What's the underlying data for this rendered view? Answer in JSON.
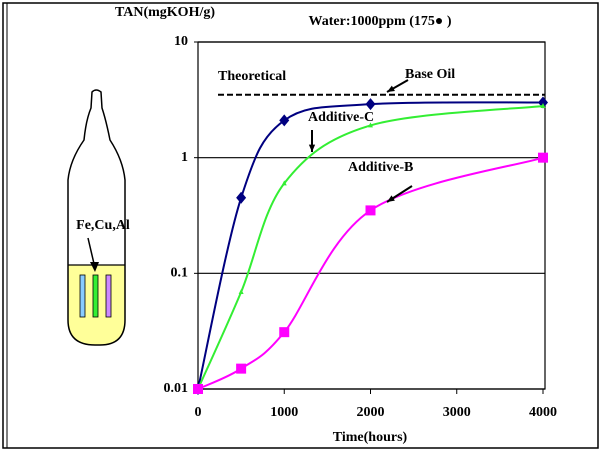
{
  "chart_data": {
    "type": "line",
    "y_label": "TAN(mgKOH/g)",
    "subtitle": "Water:1000ppm  (175● )",
    "x_label": "Time(hours)",
    "log_y": true,
    "grid": true,
    "xlim": [
      0,
      4000
    ],
    "xticks": [
      0,
      1000,
      2000,
      3000,
      4000
    ],
    "ylim": [
      0.01,
      10
    ],
    "yticks": [
      0.01,
      0.1,
      1,
      10
    ],
    "reference_line": {
      "label": "Theoretical",
      "value": 3.5
    },
    "series": [
      {
        "name": "Base Oil",
        "color": "#000080",
        "marker": "diamond",
        "x": [
          0,
          500,
          1000,
          2000,
          4000
        ],
        "values": [
          0.01,
          0.45,
          2.1,
          2.9,
          3.0
        ]
      },
      {
        "name": "Additive-C",
        "color": "#33ee33",
        "marker": "triangle",
        "x": [
          0,
          500,
          1000,
          2000,
          4000
        ],
        "values": [
          0.01,
          0.069,
          0.6,
          1.9,
          2.8
        ]
      },
      {
        "name": "Additive-B",
        "color": "#ff00ff",
        "marker": "square",
        "x": [
          0,
          500,
          1000,
          2000,
          4000
        ],
        "values": [
          0.01,
          0.015,
          0.031,
          0.35,
          1.0
        ]
      }
    ],
    "diagram_label": "Fe,Cu,Al"
  }
}
